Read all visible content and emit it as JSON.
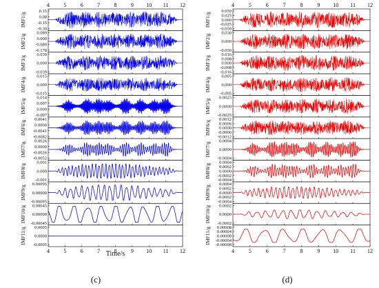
{
  "chart_data": [
    {
      "type": "line",
      "panel": "(c)",
      "color": "#0000ee",
      "xlim": [
        4,
        12
      ],
      "x_ticks": [
        "4",
        "5",
        "6",
        "7",
        "8",
        "9",
        "10",
        "11",
        "12"
      ],
      "xlabel": "Time/s",
      "series": [
        {
          "name": "IMF1/g",
          "ticks": [
            "0.15",
            "0.00",
            "-0.15",
            "-0.30"
          ],
          "amp": 0.9,
          "freq": 60,
          "env": "dense"
        },
        {
          "name": "IMF2/g",
          "ticks": [
            "0.089",
            "0.000",
            "-0.089",
            "-0.178"
          ],
          "amp": 0.85,
          "freq": 50,
          "env": "dense"
        },
        {
          "name": "IMF3/g",
          "ticks": [
            "0.039",
            "0.000",
            "-0.039"
          ],
          "amp": 0.8,
          "freq": 40,
          "env": "dense"
        },
        {
          "name": "IMF4/g",
          "ticks": [
            "0.015",
            "0.000",
            "-0.015"
          ],
          "amp": 0.75,
          "freq": 30,
          "env": "dense"
        },
        {
          "name": "IMF5/g",
          "ticks": [
            "0.014",
            "0.007",
            "0.000",
            "-0.007"
          ],
          "amp": 0.8,
          "freq": 22,
          "env": "burst"
        },
        {
          "name": "IMF6/g",
          "ticks": [
            "0.0041",
            "0.0000",
            "-0.0041",
            "-0.0082"
          ],
          "amp": 0.75,
          "freq": 14,
          "env": "burst"
        },
        {
          "name": "IMF7/g",
          "ticks": [
            "0.0026",
            "0.0000",
            "-0.0026",
            "-0.0052"
          ],
          "amp": 0.7,
          "freq": 8,
          "env": "burst"
        },
        {
          "name": "IMF8/g",
          "ticks": [
            "0.001",
            "0.000",
            "-0.001"
          ],
          "amp": 0.75,
          "freq": 5,
          "env": "mid"
        },
        {
          "name": "IMF9/g",
          "ticks": [
            "0.00095",
            "0.00000",
            "-0.00095"
          ],
          "amp": 0.8,
          "freq": 3,
          "env": "mid"
        },
        {
          "name": "IMF10/g",
          "ticks": [
            "0.00045",
            "0.00000",
            "-0.00045"
          ],
          "amp": 0.85,
          "freq": 1.2,
          "env": "slow"
        },
        {
          "name": "IMF11/g",
          "ticks": [
            "0.0005",
            "0.0000",
            "-0.0005"
          ],
          "amp": 0.0,
          "freq": 0,
          "env": "flat"
        }
      ]
    },
    {
      "type": "line",
      "panel": "(d)",
      "color": "#ee0000",
      "xlim": [
        4,
        12
      ],
      "x_ticks": [
        "4",
        "5",
        "6",
        "7",
        "8",
        "9",
        "10",
        "11",
        "12"
      ],
      "xlabel": "",
      "series": [
        {
          "name": "IMF1/g",
          "ticks": [
            "0.050",
            "0.025",
            "0.000",
            "-0.025",
            "-0.050"
          ],
          "amp": 0.9,
          "freq": 60,
          "env": "dense"
        },
        {
          "name": "IMF2/g",
          "ticks": [
            "0.030",
            "0.000",
            "-0.030"
          ],
          "amp": 0.85,
          "freq": 50,
          "env": "dense"
        },
        {
          "name": "IMF3/g",
          "ticks": [
            "0.016",
            "0.008",
            "0.000",
            "-0.008",
            "-0.016"
          ],
          "amp": 0.85,
          "freq": 40,
          "env": "dense"
        },
        {
          "name": "IMF4/g",
          "ticks": [
            "0.005",
            "0.000",
            "-0.005"
          ],
          "amp": 0.8,
          "freq": 30,
          "env": "dense"
        },
        {
          "name": "IMF5/g",
          "ticks": [
            "0.0025",
            "0.0000",
            "-0.0025"
          ],
          "amp": 0.8,
          "freq": 22,
          "env": "dense"
        },
        {
          "name": "IMF6/g",
          "ticks": [
            "0.0012",
            "0.0006",
            "0.0000",
            "-0.0006",
            "-0.0012"
          ],
          "amp": 0.8,
          "freq": 16,
          "env": "dense"
        },
        {
          "name": "IMF7/g",
          "ticks": [
            "0.0004",
            "0.0000",
            "-0.0004"
          ],
          "amp": 0.8,
          "freq": 10,
          "env": "burst"
        },
        {
          "name": "IMF8/g",
          "ticks": [
            "0.0004",
            "0.0002",
            "0.0000",
            "-0.0002",
            "-0.0004"
          ],
          "amp": 0.7,
          "freq": 7,
          "env": "burst"
        },
        {
          "name": "IMF9/g",
          "ticks": [
            "0.0004",
            "0.0002",
            "0.0000",
            "-0.0002",
            "-0.0004"
          ],
          "amp": 0.6,
          "freq": 4,
          "env": "mid"
        },
        {
          "name": "IMF10/g",
          "ticks": [
            "0.0002",
            "0.0000",
            "-0.0002"
          ],
          "amp": 0.45,
          "freq": 2,
          "env": "mid"
        },
        {
          "name": "IMF11/g",
          "ticks": [
            "0.00008",
            "0.00004",
            "0.00000",
            "-0.00004",
            "-0.00008"
          ],
          "amp": 0.7,
          "freq": 0.9,
          "env": "slow"
        }
      ]
    }
  ]
}
